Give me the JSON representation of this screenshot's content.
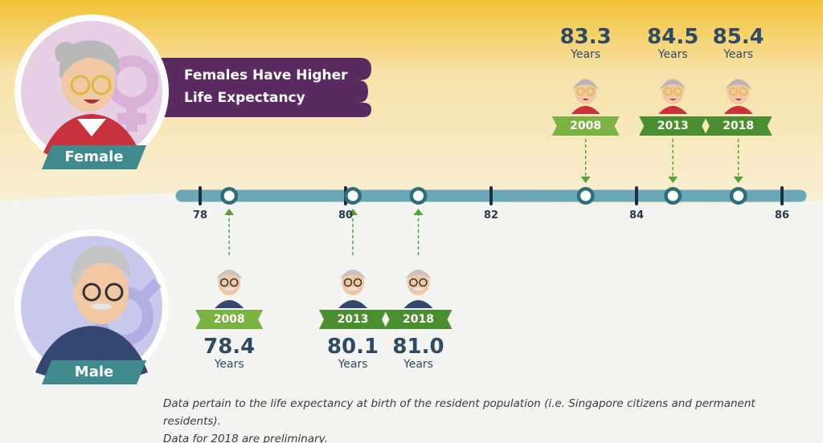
{
  "heading": {
    "line1": "Females Have Higher",
    "line2": "Life Expectancy"
  },
  "female_tag": "Female",
  "male_tag": "Male",
  "footnote": {
    "line1": "Data pertain to the life expectancy at birth of the resident population (i.e. Singapore citizens and permanent residents).",
    "line2": "Data for 2018 are preliminary."
  },
  "colors": {
    "axis": "#6aa8b8",
    "female_label_light": "#7bb342",
    "female_label_dark": "#4a8f2f",
    "heading_bg": "#5b2a60",
    "value_text": "#2f4a63",
    "background_top": "#f3c235",
    "background_bottom": "#f4f4f2"
  },
  "chart_data": {
    "type": "scatter",
    "title": "Females Have Higher Life Expectancy",
    "xlabel": "",
    "ylabel": "",
    "xlim": [
      78,
      86
    ],
    "xticks": [
      78,
      80,
      82,
      84,
      86
    ],
    "xtick_labels": [
      "78",
      "80",
      "82",
      "84",
      "86"
    ],
    "unit": "Years",
    "grid": false,
    "series": [
      {
        "name": "Female",
        "points": [
          {
            "year": "2008",
            "value": 83.3,
            "value_label": "83.3",
            "unit_label": "Years"
          },
          {
            "year": "2013",
            "value": 84.5,
            "value_label": "84.5",
            "unit_label": "Years"
          },
          {
            "year": "2018",
            "value": 85.4,
            "value_label": "85.4",
            "unit_label": "Years"
          }
        ]
      },
      {
        "name": "Male",
        "points": [
          {
            "year": "2008",
            "value": 78.4,
            "value_label": "78.4",
            "unit_label": "Years"
          },
          {
            "year": "2013",
            "value": 80.1,
            "value_label": "80.1",
            "unit_label": "Years"
          },
          {
            "year": "2018",
            "value": 81.0,
            "value_label": "81.0",
            "unit_label": "Years"
          }
        ]
      }
    ]
  }
}
